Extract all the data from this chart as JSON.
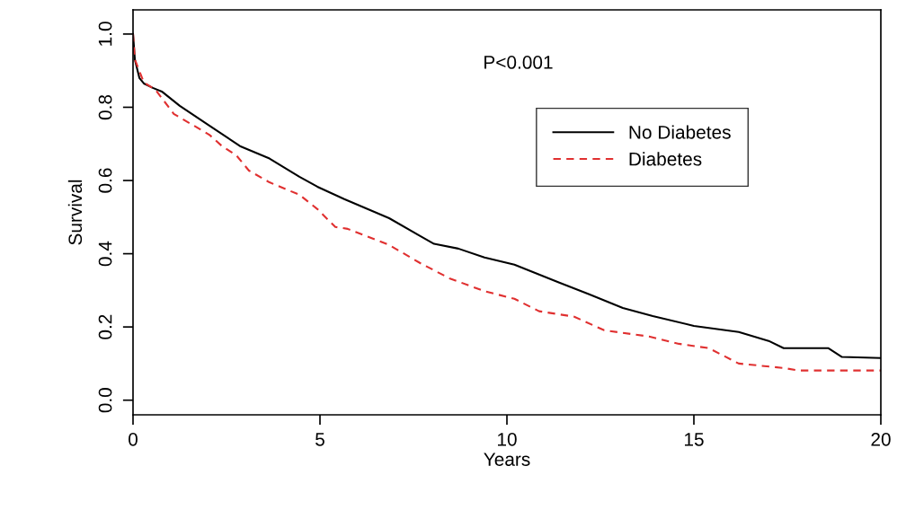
{
  "chart_data": {
    "type": "line",
    "xlabel": "Years",
    "ylabel": "Survival",
    "xlim": [
      0,
      20
    ],
    "ylim": [
      -0.04,
      1.066
    ],
    "xticks": [
      0,
      5,
      10,
      15,
      20
    ],
    "yticks": [
      {
        "value": 0,
        "label": "0.0"
      },
      {
        "value": 0.2,
        "label": "0.2"
      },
      {
        "value": 0.4,
        "label": "0.4"
      },
      {
        "value": 0.6,
        "label": "0.6"
      },
      {
        "value": 0.8,
        "label": "0.8"
      },
      {
        "value": 1,
        "label": "1.0"
      }
    ],
    "grid": false,
    "legend": "top right",
    "annotations": [
      "P<0.001"
    ],
    "series": [
      {
        "name": "No Diabetes",
        "color": "#000000",
        "line_style": "solid",
        "x": [
          0,
          0.05,
          0.17,
          0.29,
          0.53,
          0.77,
          1.25,
          2.04,
          2.86,
          3.65,
          4.45,
          4.93,
          5.65,
          6.85,
          7.67,
          8.05,
          8.7,
          9.4,
          10.2,
          11.4,
          12.2,
          13.1,
          13.9,
          15.0,
          16.2,
          17.0,
          17.4,
          18.6,
          18.96,
          20
        ],
        "values": [
          1.0,
          0.93,
          0.88,
          0.865,
          0.853,
          0.843,
          0.804,
          0.75,
          0.694,
          0.66,
          0.61,
          0.583,
          0.549,
          0.497,
          0.449,
          0.427,
          0.414,
          0.39,
          0.37,
          0.321,
          0.289,
          0.252,
          0.23,
          0.203,
          0.186,
          0.162,
          0.142,
          0.142,
          0.118,
          0.115
        ]
      },
      {
        "name": "Diabetes",
        "color": "#e03030",
        "line_style": "dashed",
        "x": [
          0,
          0.05,
          0.29,
          0.6,
          1.09,
          2.04,
          2.38,
          2.76,
          3.1,
          3.65,
          4.45,
          4.93,
          5.41,
          5.74,
          6.85,
          7.67,
          8.46,
          9.42,
          10.2,
          10.86,
          11.8,
          12.6,
          13.8,
          14.6,
          15.4,
          16.2,
          17.4,
          17.8,
          20
        ],
        "values": [
          1.0,
          0.93,
          0.868,
          0.848,
          0.782,
          0.725,
          0.694,
          0.669,
          0.627,
          0.595,
          0.561,
          0.522,
          0.473,
          0.468,
          0.424,
          0.375,
          0.333,
          0.297,
          0.277,
          0.243,
          0.228,
          0.191,
          0.174,
          0.154,
          0.142,
          0.1,
          0.088,
          0.081,
          0.081
        ]
      }
    ]
  }
}
